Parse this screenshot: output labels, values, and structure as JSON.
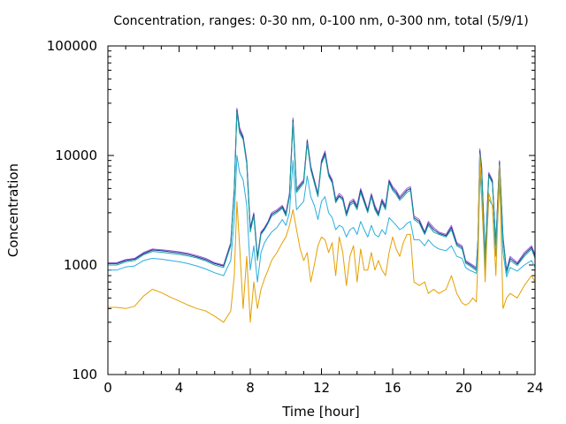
{
  "chart_data": {
    "type": "line",
    "title": "Concentration, ranges: 0-30 nm, 0-100 nm, 0-300 nm, total (5/9/1)",
    "xlabel": "Time [hour]",
    "ylabel": "Concentration",
    "xlim": [
      0,
      24
    ],
    "ylim": [
      100,
      100000
    ],
    "yscale": "log",
    "grid": false,
    "legend": "none",
    "x_ticks": [
      0,
      4,
      8,
      12,
      16,
      20,
      24
    ],
    "x_tick_labels": [
      "0",
      "4",
      "8",
      "12",
      "16",
      "20",
      "24"
    ],
    "y_ticks": [
      100,
      1000,
      10000,
      100000
    ],
    "y_tick_labels": [
      "100",
      "1000",
      "10000",
      "100000"
    ],
    "series": [
      {
        "color": "#9c5fd0",
        "x": [
          0,
          0.5,
          1,
          1.5,
          2,
          2.5,
          3,
          3.5,
          4,
          4.5,
          5,
          5.5,
          6,
          6.5,
          6.9,
          7.1,
          7.25,
          7.4,
          7.6,
          7.8,
          8.0,
          8.2,
          8.4,
          8.6,
          8.8,
          9.0,
          9.2,
          9.5,
          9.8,
          10.0,
          10.2,
          10.4,
          10.6,
          10.8,
          11.0,
          11.2,
          11.4,
          11.6,
          11.8,
          12.0,
          12.2,
          12.4,
          12.6,
          12.8,
          13.0,
          13.2,
          13.4,
          13.6,
          13.8,
          14.0,
          14.2,
          14.4,
          14.6,
          14.8,
          15.0,
          15.2,
          15.4,
          15.6,
          15.8,
          16.0,
          16.2,
          16.4,
          16.6,
          16.8,
          17.0,
          17.2,
          17.5,
          17.8,
          18.0,
          18.3,
          18.6,
          19.0,
          19.3,
          19.6,
          19.9,
          20.1,
          20.3,
          20.5,
          20.7,
          20.8,
          20.9,
          21.0,
          21.2,
          21.4,
          21.6,
          21.8,
          22.0,
          22.2,
          22.4,
          22.6,
          23.0,
          23.4,
          23.8,
          24.0
        ],
        "values": [
          1050,
          1050,
          1120,
          1150,
          1300,
          1400,
          1380,
          1350,
          1320,
          1280,
          1220,
          1150,
          1050,
          1000,
          1600,
          5000,
          27000,
          18000,
          15000,
          9000,
          2200,
          3000,
          1200,
          2000,
          2200,
          2500,
          3000,
          3200,
          3500,
          3000,
          4500,
          22000,
          5000,
          5500,
          6000,
          14000,
          8000,
          6000,
          4500,
          9000,
          11000,
          7000,
          6000,
          4000,
          4500,
          4200,
          3000,
          3800,
          4000,
          3500,
          5000,
          4000,
          3200,
          4500,
          3500,
          3000,
          4000,
          3500,
          6000,
          5200,
          4800,
          4200,
          4600,
          5000,
          5200,
          2800,
          2600,
          2000,
          2500,
          2200,
          2000,
          1900,
          2300,
          1600,
          1500,
          1100,
          1050,
          1000,
          950,
          1800,
          11500,
          8000,
          1200,
          7000,
          6000,
          1600,
          9000,
          1800,
          900,
          1200,
          1050,
          1300,
          1500,
          1250
        ]
      },
      {
        "color": "#1c2f95",
        "x": [
          0,
          0.5,
          1,
          1.5,
          2,
          2.5,
          3,
          3.5,
          4,
          4.5,
          5,
          5.5,
          6,
          6.5,
          6.9,
          7.1,
          7.25,
          7.4,
          7.6,
          7.8,
          8.0,
          8.2,
          8.4,
          8.6,
          8.8,
          9.0,
          9.2,
          9.5,
          9.8,
          10.0,
          10.2,
          10.4,
          10.6,
          10.8,
          11.0,
          11.2,
          11.4,
          11.6,
          11.8,
          12.0,
          12.2,
          12.4,
          12.6,
          12.8,
          13.0,
          13.2,
          13.4,
          13.6,
          13.8,
          14.0,
          14.2,
          14.4,
          14.6,
          14.8,
          15.0,
          15.2,
          15.4,
          15.6,
          15.8,
          16.0,
          16.2,
          16.4,
          16.6,
          16.8,
          17.0,
          17.2,
          17.5,
          17.8,
          18.0,
          18.3,
          18.6,
          19.0,
          19.3,
          19.6,
          19.9,
          20.1,
          20.3,
          20.5,
          20.7,
          20.8,
          20.9,
          21.0,
          21.2,
          21.4,
          21.6,
          21.8,
          22.0,
          22.2,
          22.4,
          22.6,
          23.0,
          23.4,
          23.8,
          24.0
        ],
        "values": [
          1030,
          1030,
          1100,
          1130,
          1270,
          1370,
          1350,
          1320,
          1290,
          1250,
          1190,
          1120,
          1030,
          980,
          1550,
          4800,
          26000,
          17000,
          14500,
          8700,
          2100,
          2900,
          1150,
          1950,
          2150,
          2450,
          2900,
          3100,
          3400,
          2900,
          4300,
          21000,
          4800,
          5300,
          5800,
          13500,
          7700,
          5800,
          4300,
          8700,
          10500,
          6700,
          5800,
          3850,
          4300,
          4050,
          2900,
          3650,
          3850,
          3350,
          4800,
          3850,
          3100,
          4300,
          3350,
          2900,
          3850,
          3350,
          5800,
          5000,
          4600,
          4050,
          4400,
          4800,
          5000,
          2700,
          2500,
          1950,
          2400,
          2100,
          1950,
          1850,
          2200,
          1550,
          1450,
          1070,
          1020,
          970,
          920,
          1750,
          11000,
          7700,
          1150,
          6700,
          5800,
          1550,
          8700,
          1750,
          870,
          1150,
          1020,
          1250,
          1450,
          1200
        ]
      },
      {
        "color": "#14a39a",
        "x": [
          0,
          0.5,
          1,
          1.5,
          2,
          2.5,
          3,
          3.5,
          4,
          4.5,
          5,
          5.5,
          6,
          6.5,
          6.9,
          7.1,
          7.25,
          7.4,
          7.6,
          7.8,
          8.0,
          8.2,
          8.4,
          8.6,
          8.8,
          9.0,
          9.2,
          9.5,
          9.8,
          10.0,
          10.2,
          10.4,
          10.6,
          10.8,
          11.0,
          11.2,
          11.4,
          11.6,
          11.8,
          12.0,
          12.2,
          12.4,
          12.6,
          12.8,
          13.0,
          13.2,
          13.4,
          13.6,
          13.8,
          14.0,
          14.2,
          14.4,
          14.6,
          14.8,
          15.0,
          15.2,
          15.4,
          15.6,
          15.8,
          16.0,
          16.2,
          16.4,
          16.6,
          16.8,
          17.0,
          17.2,
          17.5,
          17.8,
          18.0,
          18.3,
          18.6,
          19.0,
          19.3,
          19.6,
          19.9,
          20.1,
          20.3,
          20.5,
          20.7,
          20.8,
          20.9,
          21.0,
          21.2,
          21.4,
          21.6,
          21.8,
          22.0,
          22.2,
          22.4,
          22.6,
          23.0,
          23.4,
          23.8,
          24.0
        ],
        "values": [
          1000,
          1000,
          1070,
          1100,
          1240,
          1330,
          1310,
          1280,
          1250,
          1210,
          1160,
          1090,
          1000,
          950,
          1500,
          4600,
          25000,
          16000,
          14000,
          8400,
          2000,
          2800,
          1100,
          1900,
          2100,
          2400,
          2800,
          3000,
          3300,
          2800,
          4200,
          20000,
          4600,
          5100,
          5600,
          13000,
          7400,
          5600,
          4200,
          8400,
          10000,
          6500,
          5600,
          3700,
          4200,
          3900,
          2800,
          3500,
          3700,
          3200,
          4600,
          3700,
          3000,
          4200,
          3200,
          2800,
          3700,
          3200,
          5600,
          4800,
          4400,
          3900,
          4200,
          4600,
          4800,
          2600,
          2400,
          1900,
          2300,
          2000,
          1900,
          1800,
          2100,
          1500,
          1400,
          1040,
          990,
          940,
          890,
          1700,
          10500,
          7400,
          1100,
          6500,
          5600,
          1500,
          8400,
          1700,
          840,
          1100,
          990,
          1200,
          1400,
          1150
        ]
      },
      {
        "color": "#2aaedf",
        "x": [
          0,
          0.5,
          1,
          1.5,
          2,
          2.5,
          3,
          3.5,
          4,
          4.5,
          5,
          5.5,
          6,
          6.5,
          6.9,
          7.1,
          7.25,
          7.4,
          7.6,
          7.8,
          8.0,
          8.2,
          8.4,
          8.6,
          8.8,
          9.0,
          9.2,
          9.5,
          9.8,
          10.0,
          10.2,
          10.4,
          10.6,
          10.8,
          11.0,
          11.2,
          11.4,
          11.6,
          11.8,
          12.0,
          12.2,
          12.4,
          12.6,
          12.8,
          13.0,
          13.2,
          13.4,
          13.6,
          13.8,
          14.0,
          14.2,
          14.4,
          14.6,
          14.8,
          15.0,
          15.2,
          15.4,
          15.6,
          15.8,
          16.0,
          16.2,
          16.4,
          16.6,
          16.8,
          17.0,
          17.2,
          17.5,
          17.8,
          18.0,
          18.3,
          18.6,
          19.0,
          19.3,
          19.6,
          19.9,
          20.1,
          20.3,
          20.5,
          20.7,
          20.8,
          20.9,
          21.0,
          21.2,
          21.4,
          21.6,
          21.8,
          22.0,
          22.2,
          22.4,
          22.6,
          23.0,
          23.4,
          23.8,
          24.0
        ],
        "values": [
          900,
          900,
          960,
          980,
          1100,
          1150,
          1130,
          1100,
          1070,
          1030,
          980,
          920,
          850,
          800,
          1100,
          2600,
          10000,
          7000,
          6000,
          3500,
          900,
          1500,
          700,
          1300,
          1600,
          1800,
          2000,
          2200,
          2600,
          2300,
          3000,
          9000,
          3200,
          3500,
          3800,
          6500,
          4200,
          3500,
          2600,
          3800,
          4200,
          3000,
          2700,
          2100,
          2300,
          2200,
          1800,
          2100,
          2200,
          1900,
          2500,
          2100,
          1800,
          2300,
          1900,
          1800,
          2100,
          1900,
          2700,
          2500,
          2300,
          2100,
          2200,
          2400,
          2500,
          1700,
          1700,
          1500,
          1700,
          1500,
          1400,
          1350,
          1500,
          1200,
          1150,
          950,
          900,
          870,
          840,
          1300,
          7000,
          4200,
          900,
          4000,
          3500,
          1200,
          5500,
          1300,
          780,
          950,
          880,
          1000,
          1100,
          950
        ]
      },
      {
        "color": "#e5a000",
        "x": [
          0,
          0.5,
          1,
          1.5,
          2,
          2.5,
          3,
          3.5,
          4,
          4.5,
          5,
          5.5,
          6,
          6.5,
          6.9,
          7.1,
          7.25,
          7.4,
          7.6,
          7.8,
          8.0,
          8.2,
          8.4,
          8.6,
          8.8,
          9.0,
          9.2,
          9.5,
          9.8,
          10.0,
          10.2,
          10.4,
          10.6,
          10.8,
          11.0,
          11.2,
          11.4,
          11.6,
          11.8,
          12.0,
          12.2,
          12.4,
          12.6,
          12.8,
          13.0,
          13.2,
          13.4,
          13.6,
          13.8,
          14.0,
          14.2,
          14.4,
          14.6,
          14.8,
          15.0,
          15.2,
          15.4,
          15.6,
          15.8,
          16.0,
          16.2,
          16.4,
          16.6,
          16.8,
          17.0,
          17.2,
          17.5,
          17.8,
          18.0,
          18.3,
          18.6,
          19.0,
          19.3,
          19.6,
          19.9,
          20.1,
          20.3,
          20.5,
          20.7,
          20.8,
          20.9,
          21.0,
          21.2,
          21.4,
          21.6,
          21.8,
          22.0,
          22.2,
          22.4,
          22.6,
          23.0,
          23.4,
          23.8,
          24.0
        ],
        "values": [
          410,
          410,
          400,
          420,
          520,
          600,
          560,
          510,
          470,
          430,
          400,
          380,
          340,
          300,
          380,
          800,
          3800,
          1500,
          400,
          1200,
          300,
          700,
          400,
          600,
          750,
          900,
          1100,
          1300,
          1600,
          1800,
          2300,
          3200,
          2100,
          1400,
          1100,
          1300,
          700,
          1000,
          1500,
          1800,
          1700,
          1300,
          1600,
          800,
          1800,
          1300,
          650,
          1200,
          1500,
          700,
          1400,
          900,
          900,
          1300,
          900,
          1100,
          900,
          800,
          1300,
          1800,
          1400,
          1200,
          1600,
          1900,
          1900,
          700,
          650,
          700,
          550,
          600,
          550,
          600,
          800,
          550,
          450,
          430,
          450,
          500,
          460,
          1200,
          10000,
          4500,
          700,
          4500,
          3500,
          800,
          8000,
          400,
          500,
          550,
          500,
          650,
          800,
          700
        ]
      }
    ]
  }
}
